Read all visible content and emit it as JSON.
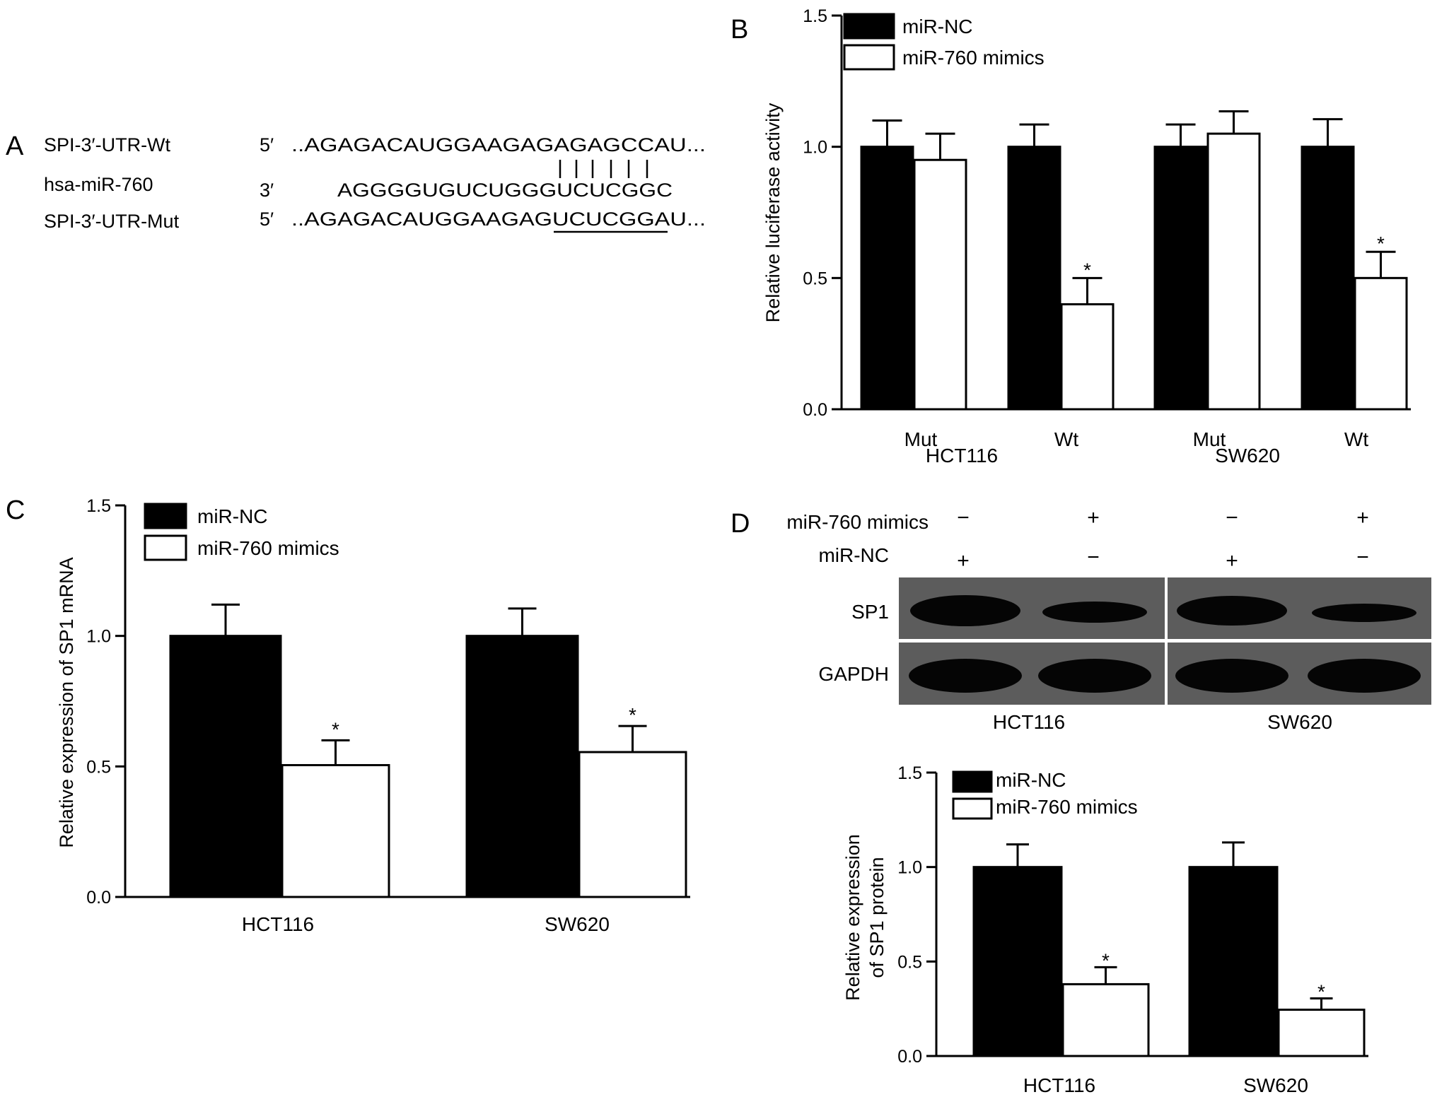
{
  "panels": {
    "A": "A",
    "B": "B",
    "C": "C",
    "D": "D"
  },
  "panel_a": {
    "rows": [
      {
        "label": "SPI-3′-UTR-Wt",
        "prime": "5′",
        "seq": "..AGAGACAUGGAAGAGAGAGCCAU..."
      },
      {
        "label": "hsa-miR-760",
        "prime": "3′",
        "seq": "AGGGGUGUCUGGGUCUCGGC"
      },
      {
        "label": "SPI-3′-UTR-Mut",
        "prime": "5′",
        "seq": "..AGAGACAUGGAAGAGUCUCGGAU..."
      }
    ],
    "pair_marks": "| | | | | |"
  },
  "blot": {
    "row_labels": {
      "treat": "miR-760 mimics",
      "control": "miR-NC"
    },
    "signs": {
      "treat": [
        "−",
        "+",
        "−",
        "+"
      ],
      "control": [
        "+",
        "−",
        "+",
        "−"
      ]
    },
    "bands": {
      "top": "SP1",
      "bottom": "GAPDH"
    },
    "groups": [
      "HCT116",
      "SW620"
    ]
  },
  "chart_data": [
    {
      "panel": "B",
      "type": "bar",
      "ylabel": "Relative luciferase activity",
      "ylim": [
        0,
        1.5
      ],
      "yticks": [
        "0.0",
        "0.5",
        "1.0",
        "1.5"
      ],
      "categories": [
        "Mut",
        "Wt",
        "Mut",
        "Wt"
      ],
      "groups": [
        "HCT116",
        "SW620"
      ],
      "series": [
        {
          "name": "miR-NC",
          "values": [
            1.0,
            1.0,
            1.0,
            1.0
          ],
          "errors": [
            0.1,
            0.085,
            0.085,
            0.105
          ],
          "color": "#000000"
        },
        {
          "name": "miR-760 mimics",
          "values": [
            0.95,
            0.4,
            1.05,
            0.5
          ],
          "errors": [
            0.1,
            0.1,
            0.085,
            0.1
          ],
          "color": "#ffffff"
        }
      ],
      "significance": [
        "",
        "*",
        "",
        "*"
      ],
      "legend": "top-left"
    },
    {
      "panel": "C",
      "type": "bar",
      "ylabel": "Relative expression of SP1 mRNA",
      "ylim": [
        0,
        1.5
      ],
      "yticks": [
        "0.0",
        "0.5",
        "1.0",
        "1.5"
      ],
      "categories": [
        "HCT116",
        "SW620"
      ],
      "series": [
        {
          "name": "miR-NC",
          "values": [
            1.0,
            1.0
          ],
          "errors": [
            0.12,
            0.105
          ],
          "color": "#000000"
        },
        {
          "name": "miR-760 mimics",
          "values": [
            0.505,
            0.555
          ],
          "errors": [
            0.095,
            0.1
          ],
          "color": "#ffffff"
        }
      ],
      "significance": [
        "*",
        "*"
      ],
      "legend": "top-left"
    },
    {
      "panel": "D",
      "type": "bar",
      "ylabel_lines": [
        "Relative expression",
        "of SP1 protein"
      ],
      "ylim": [
        0,
        1.5
      ],
      "yticks": [
        "0.0",
        "0.5",
        "1.0",
        "1.5"
      ],
      "categories": [
        "HCT116",
        "SW620"
      ],
      "series": [
        {
          "name": "miR-NC",
          "values": [
            1.0,
            1.0
          ],
          "errors": [
            0.12,
            0.13
          ],
          "color": "#000000"
        },
        {
          "name": "miR-760 mimics",
          "values": [
            0.38,
            0.245
          ],
          "errors": [
            0.09,
            0.06
          ],
          "color": "#ffffff"
        }
      ],
      "significance": [
        "*",
        "*"
      ],
      "legend": "top-left"
    }
  ]
}
